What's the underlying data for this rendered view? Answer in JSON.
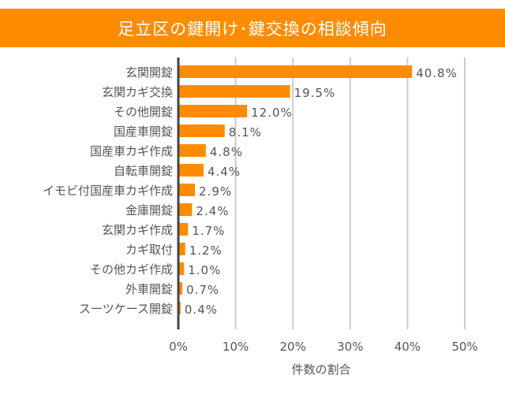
{
  "chart_data": {
    "type": "bar",
    "orientation": "horizontal",
    "title": "足立区の鍵開け･鍵交換の相談傾向",
    "xlabel": "件数の割合",
    "ylabel": "",
    "categories": [
      "玄関開錠",
      "玄関カギ交換",
      "その他開錠",
      "国産車開錠",
      "国産車カギ作成",
      "自転車開錠",
      "イモビ付国産車カギ作成",
      "金庫開錠",
      "玄関カギ作成",
      "カギ取付",
      "その他カギ作成",
      "外車開錠",
      "スーツケース開錠"
    ],
    "values": [
      40.8,
      19.5,
      12.0,
      8.1,
      4.8,
      4.4,
      2.9,
      2.4,
      1.7,
      1.2,
      1.0,
      0.7,
      0.4
    ],
    "data_labels": [
      "40.8%",
      "19.5%",
      "12.0%",
      "8.1%",
      "4.8%",
      "4.4%",
      "2.9%",
      "2.4%",
      "1.7%",
      "1.2%",
      "1.0%",
      "0.7%",
      "0.4%"
    ],
    "xlim": [
      0,
      50
    ],
    "xticks": [
      "0%",
      "10%",
      "20%",
      "30%",
      "40%",
      "50%"
    ],
    "grid": true,
    "legend": "none",
    "colors": {
      "bar": "#ff8c00",
      "banner": "#ff8c00",
      "grid": "#cccccc",
      "axis": "#444444"
    }
  }
}
